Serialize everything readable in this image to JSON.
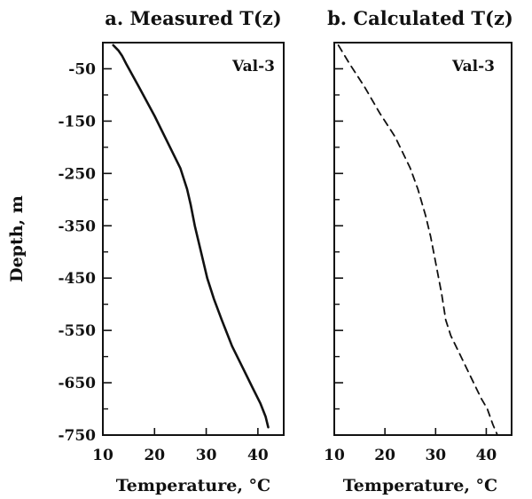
{
  "chart_data": [
    {
      "type": "line",
      "title": "a. Measured T(z)",
      "xlabel": "Temperature, °C",
      "ylabel": "Depth, m",
      "annotation": "Val-3",
      "xlim": [
        10,
        45
      ],
      "ylim": [
        -750,
        0
      ],
      "xticks": [
        10,
        20,
        30,
        40
      ],
      "yticks": [
        -50,
        -150,
        -250,
        -350,
        -450,
        -550,
        -650,
        -750
      ],
      "line_style": "solid",
      "series": [
        {
          "x": [
            12.0,
            13.0,
            13.7,
            14.5,
            17.0,
            20.0,
            23.0,
            25.0,
            26.3,
            27.0,
            27.8,
            29.0,
            30.2,
            31.5,
            33.0,
            35.0,
            37.0,
            39.0,
            40.5,
            41.5,
            42.0
          ],
          "y": [
            -5,
            -15,
            -25,
            -40,
            -85,
            -140,
            -200,
            -240,
            -280,
            -310,
            -350,
            -400,
            -450,
            -490,
            -530,
            -580,
            -620,
            -660,
            -690,
            -715,
            -735
          ]
        }
      ]
    },
    {
      "type": "line",
      "title": "b. Calculated T(z)",
      "xlabel": "Temperature, °C",
      "ylabel": "",
      "annotation": "Val-3",
      "xlim": [
        10,
        45
      ],
      "ylim": [
        -750,
        0
      ],
      "xticks": [
        10,
        20,
        30,
        40
      ],
      "yticks": [
        -50,
        -150,
        -250,
        -350,
        -450,
        -550,
        -650,
        -750
      ],
      "line_style": "dashed",
      "series": [
        {
          "x": [
            10.8,
            13.0,
            16.0,
            19.0,
            22.0,
            25.0,
            26.5,
            28.0,
            29.0,
            30.0,
            31.2,
            32.0,
            33.0,
            35.0,
            37.0,
            39.0,
            40.2,
            41.3,
            42.2
          ],
          "y": [
            -5,
            -40,
            -85,
            -135,
            -180,
            -240,
            -280,
            -330,
            -370,
            -420,
            -480,
            -530,
            -560,
            -600,
            -640,
            -680,
            -700,
            -730,
            -750
          ]
        }
      ]
    }
  ]
}
